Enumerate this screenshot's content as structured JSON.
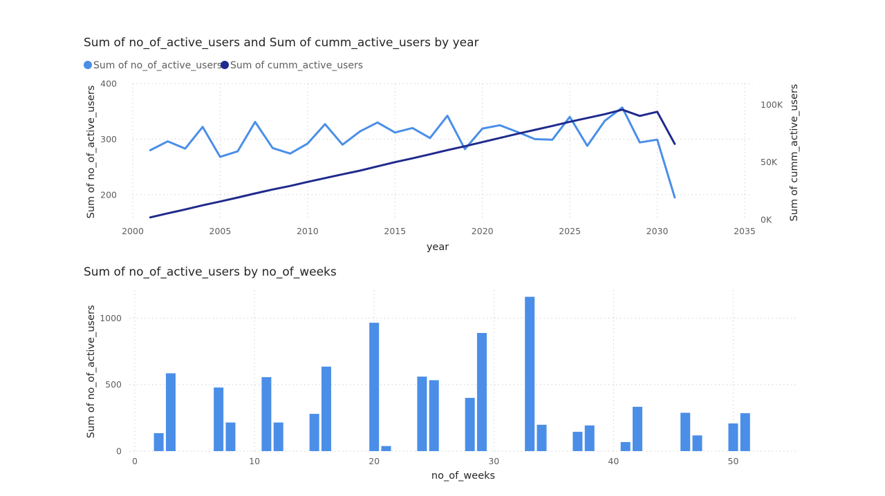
{
  "chart_data": [
    {
      "type": "line",
      "title": "Sum of no_of_active_users and Sum of cumm_active_users by year",
      "xlabel": "year",
      "ylabel": "Sum of no_of_active_users",
      "y2label": "Sum of cumm_active_users",
      "xlim": [
        2000,
        2035
      ],
      "ylim": [
        155,
        400
      ],
      "y2lim": [
        0,
        120000
      ],
      "x_ticks": [
        "2000",
        "2005",
        "2010",
        "2015",
        "2020",
        "2025",
        "2030",
        "2035"
      ],
      "y_ticks": [
        "200",
        "300",
        "400"
      ],
      "y2_ticks": [
        "0K",
        "50K",
        "100K"
      ],
      "legend_position": "top-left",
      "grid": true,
      "x": [
        2001,
        2002,
        2003,
        2004,
        2005,
        2006,
        2007,
        2008,
        2009,
        2010,
        2011,
        2012,
        2013,
        2014,
        2015,
        2016,
        2017,
        2018,
        2019,
        2020,
        2021,
        2022,
        2023,
        2024,
        2025,
        2026,
        2027,
        2028,
        2029,
        2030,
        2031
      ],
      "series": [
        {
          "name": "Sum of no_of_active_users",
          "axis": "left",
          "color": "#4a8ee8",
          "values": [
            280,
            296,
            283,
            322,
            268,
            278,
            331,
            284,
            274,
            292,
            327,
            290,
            314,
            330,
            312,
            320,
            302,
            342,
            282,
            319,
            325,
            313,
            300,
            299,
            340,
            288,
            333,
            357,
            294,
            299,
            195
          ]
        },
        {
          "name": "Sum of cumm_active_users",
          "axis": "right",
          "color": "#1f2a8c",
          "values": [
            2000,
            5500,
            8900,
            12500,
            15800,
            19200,
            22800,
            26200,
            29300,
            32800,
            36100,
            39400,
            42600,
            46300,
            50000,
            53300,
            56800,
            60400,
            63800,
            67400,
            71000,
            74600,
            78000,
            81400,
            85000,
            88300,
            91600,
            95500,
            90100,
            93700,
            65800
          ]
        }
      ]
    },
    {
      "type": "bar",
      "title": "Sum of no_of_active_users by no_of_weeks",
      "xlabel": "no_of_weeks",
      "ylabel": "Sum of no_of_active_users",
      "xlim": [
        0,
        55
      ],
      "ylim": [
        0,
        1210
      ],
      "x_ticks": [
        "0",
        "10",
        "20",
        "30",
        "40",
        "50"
      ],
      "y_ticks": [
        "0",
        "500",
        "1000"
      ],
      "grid": true,
      "color": "#4a8ee8",
      "x": [
        2,
        3,
        7,
        8,
        11,
        12,
        15,
        16,
        20,
        21,
        24,
        25,
        28,
        29,
        33,
        34,
        37,
        38,
        41,
        42,
        46,
        47,
        50,
        51
      ],
      "values": [
        135,
        585,
        478,
        215,
        556,
        215,
        280,
        635,
        965,
        38,
        560,
        533,
        400,
        888,
        1160,
        198,
        145,
        193,
        68,
        333,
        288,
        118,
        208,
        285
      ]
    }
  ]
}
